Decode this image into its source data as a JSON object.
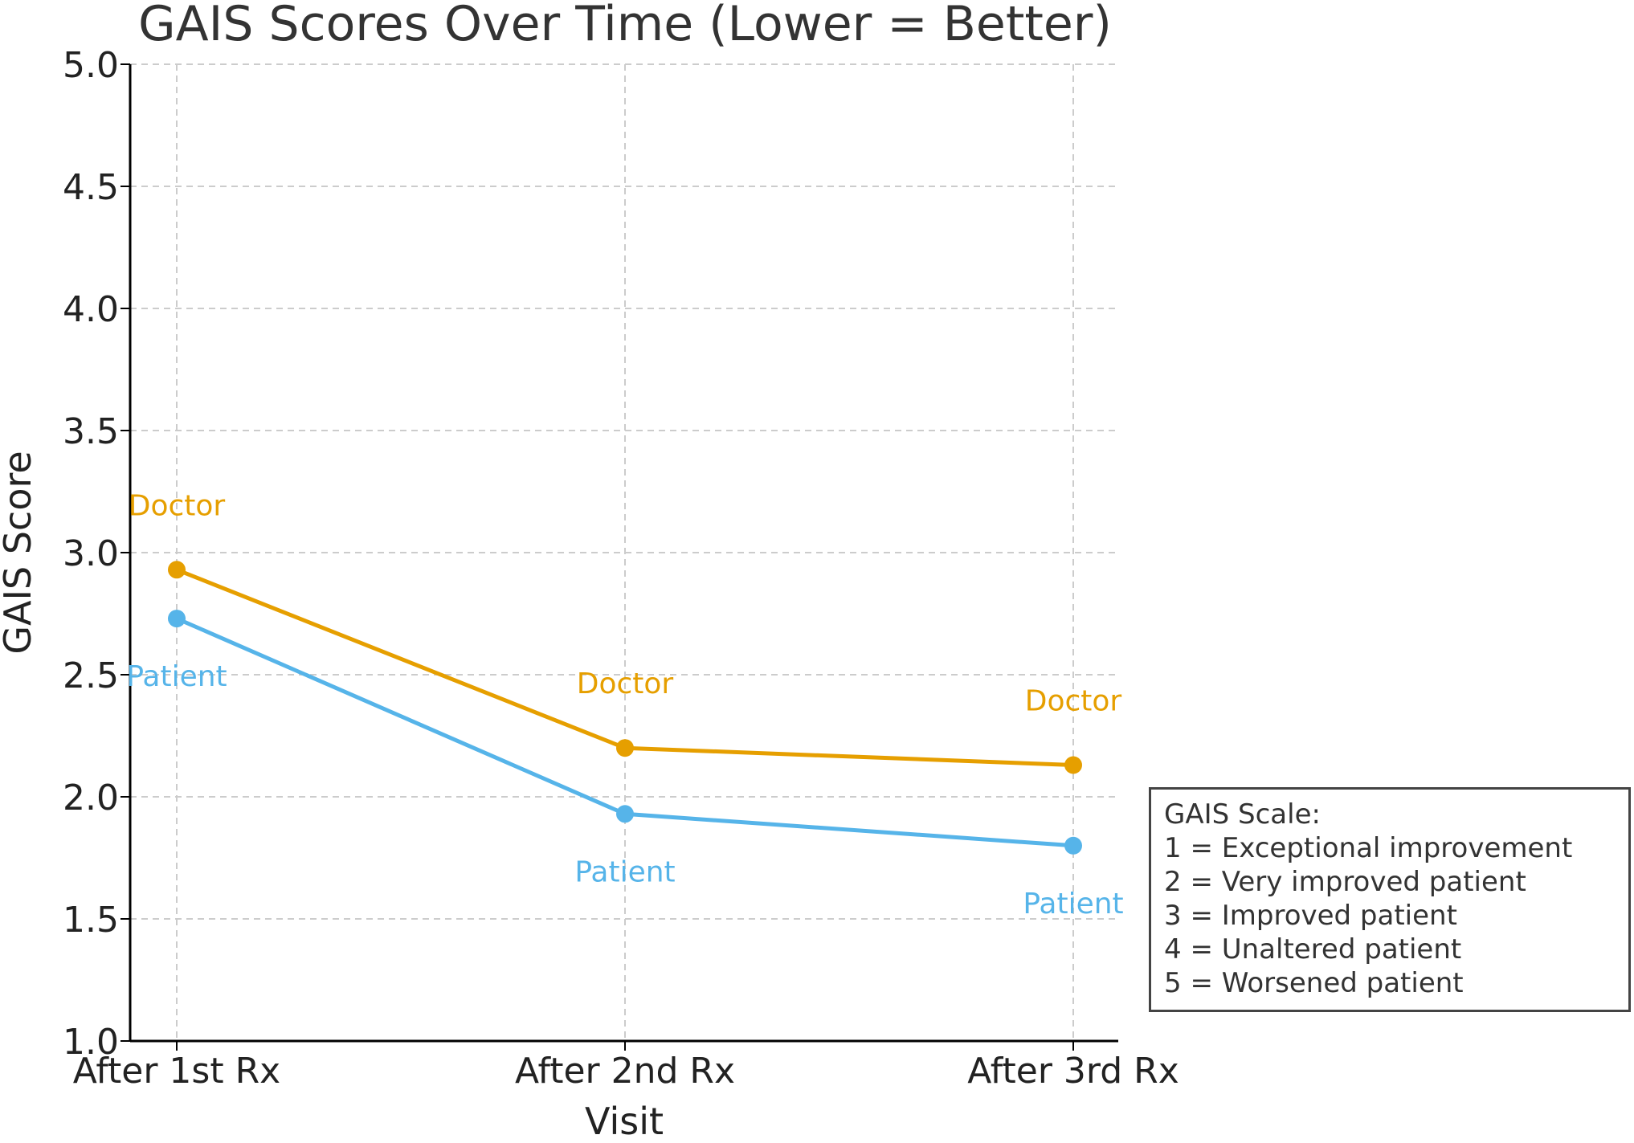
{
  "chart_data": {
    "type": "line",
    "title": "GAIS Scores Over Time (Lower = Better)",
    "xlabel": "Visit",
    "ylabel": "GAIS Score",
    "categories": [
      "After 1st Rx",
      "After 2nd Rx",
      "After 3rd Rx"
    ],
    "ylim": [
      1.0,
      5.0
    ],
    "yticks": [
      "1.0",
      "1.5",
      "2.0",
      "2.5",
      "3.0",
      "3.5",
      "4.0",
      "4.5",
      "5.0"
    ],
    "grid": true,
    "series": [
      {
        "name": "Doctor",
        "color": "#E69F00",
        "values": [
          2.93,
          2.2,
          2.13
        ]
      },
      {
        "name": "Patient",
        "color": "#56B4E9",
        "values": [
          2.73,
          1.93,
          1.8
        ]
      }
    ],
    "annotation_box": {
      "title": "GAIS Scale:",
      "lines": [
        "1 = Exceptional improvement",
        "2 = Very improved patient",
        "3 = Improved patient",
        "4 = Unaltered patient",
        "5 = Worsened patient"
      ]
    }
  }
}
